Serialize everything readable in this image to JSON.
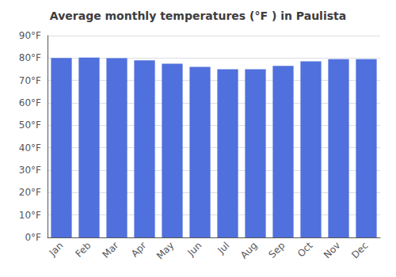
{
  "chart_data": {
    "type": "bar",
    "title": "Average monthly temperatures (°F ) in Paulista",
    "categories": [
      "Jan",
      "Feb",
      "Mar",
      "Apr",
      "May",
      "Jun",
      "Jul",
      "Aug",
      "Sep",
      "Oct",
      "Nov",
      "Dec"
    ],
    "values": [
      80.0,
      80.2,
      79.9,
      79.0,
      77.5,
      76.1,
      75.0,
      75.0,
      76.5,
      78.5,
      79.5,
      79.5
    ],
    "ylim": [
      0,
      90
    ],
    "yticks": [
      {
        "value": 0,
        "label": "0°F"
      },
      {
        "value": 10,
        "label": "10°F"
      },
      {
        "value": 20,
        "label": "20°F"
      },
      {
        "value": 30,
        "label": "30°F"
      },
      {
        "value": 40,
        "label": "40°F"
      },
      {
        "value": 50,
        "label": "50°F"
      },
      {
        "value": 60,
        "label": "60°F"
      },
      {
        "value": 70,
        "label": "70°F"
      },
      {
        "value": 80,
        "label": "80°F"
      },
      {
        "value": 90,
        "label": "90°F"
      }
    ],
    "grid": true
  }
}
